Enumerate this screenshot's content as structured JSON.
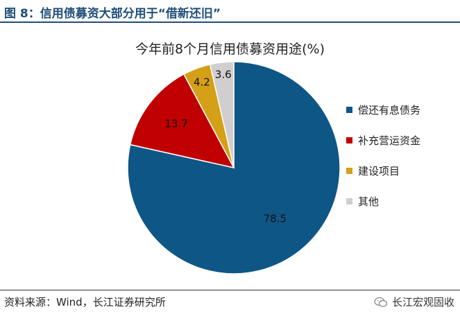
{
  "header": {
    "figure_title": "图 8：信用债募资大部分用于“借新还旧”"
  },
  "footer": {
    "source": "资料来源：Wind，长江证券研究所",
    "watermark": "长江宏观固收"
  },
  "colors": {
    "title_blue": "#1f4e79"
  },
  "chart_data": {
    "type": "pie",
    "title": "今年前8个月信用债募资用途(%)",
    "legend_position": "right",
    "slices": [
      {
        "name": "偿还有息债务",
        "value": 78.5,
        "color": "#0e5686"
      },
      {
        "name": "补充营运资金",
        "value": 13.7,
        "color": "#c00000"
      },
      {
        "name": "建设项目",
        "value": 4.2,
        "color": "#d4a017"
      },
      {
        "name": "其他",
        "value": 3.6,
        "color": "#d0cece"
      }
    ]
  }
}
